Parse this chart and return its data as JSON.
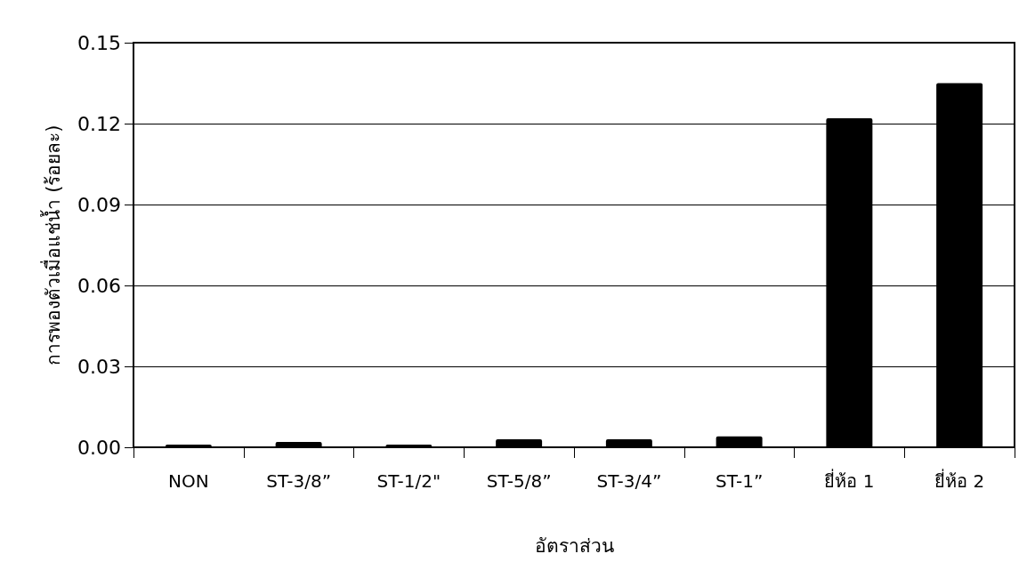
{
  "chart_data": {
    "type": "bar",
    "xlabel": "อัตราส่วน",
    "ylabel": "การพองตัวเมื่อแช่น้ำ (ร้อยละ)",
    "categories": [
      "NON",
      "ST-3/8”",
      "ST-1/2\"",
      "ST-5/8”",
      "ST-3/4”",
      "ST-1”",
      "ยี่ห้อ 1",
      "ยี่ห้อ 2"
    ],
    "values": [
      0.001,
      0.002,
      0.001,
      0.003,
      0.003,
      0.004,
      0.122,
      0.135
    ],
    "color": "#000000",
    "ylim": [
      0,
      0.15
    ],
    "yticks": [
      {
        "value": 0,
        "label": "0.00"
      },
      {
        "value": 0.03,
        "label": "0.03"
      },
      {
        "value": 0.06,
        "label": "0.06"
      },
      {
        "value": 0.09,
        "label": "0.09"
      },
      {
        "value": 0.12,
        "label": "0.12"
      },
      {
        "value": 0.15,
        "label": "0.15"
      }
    ],
    "grid": "y"
  }
}
